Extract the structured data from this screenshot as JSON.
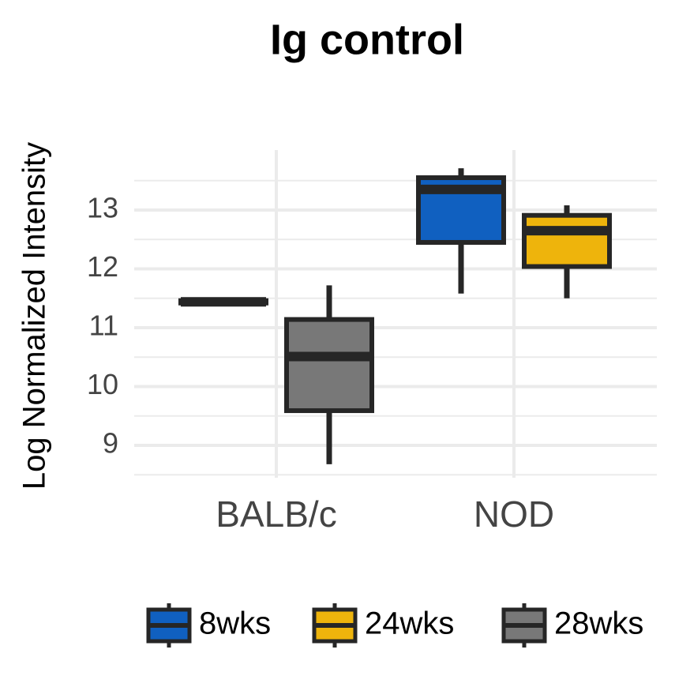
{
  "chart_data": {
    "type": "box",
    "title": "Ig control",
    "y_label": "Log Normalized Intensity",
    "categories": [
      "BALB/c",
      "NOD"
    ],
    "series": [
      {
        "name": "8wks",
        "color": "#1060c0",
        "values": [
          {
            "min": 11.4,
            "q1": 11.42,
            "median": 11.44,
            "q3": 11.46,
            "max": 11.48
          },
          {
            "min": 11.58,
            "q1": 12.45,
            "median": 13.35,
            "q3": 13.55,
            "max": 13.71
          }
        ]
      },
      {
        "name": "24wks",
        "color": "#eeb40c",
        "values": [
          null,
          {
            "min": 11.5,
            "q1": 12.04,
            "median": 12.65,
            "q3": 12.91,
            "max": 13.08
          }
        ]
      },
      {
        "name": "28wks",
        "color": "#787878",
        "values": [
          {
            "min": 8.68,
            "q1": 9.59,
            "median": 10.51,
            "q3": 11.14,
            "max": 11.72
          },
          null
        ]
      }
    ],
    "ylim": [
      8.45,
      14.02
    ],
    "yticks": [
      9,
      10,
      11,
      12,
      13
    ],
    "grid": true,
    "legend": "bottom"
  }
}
